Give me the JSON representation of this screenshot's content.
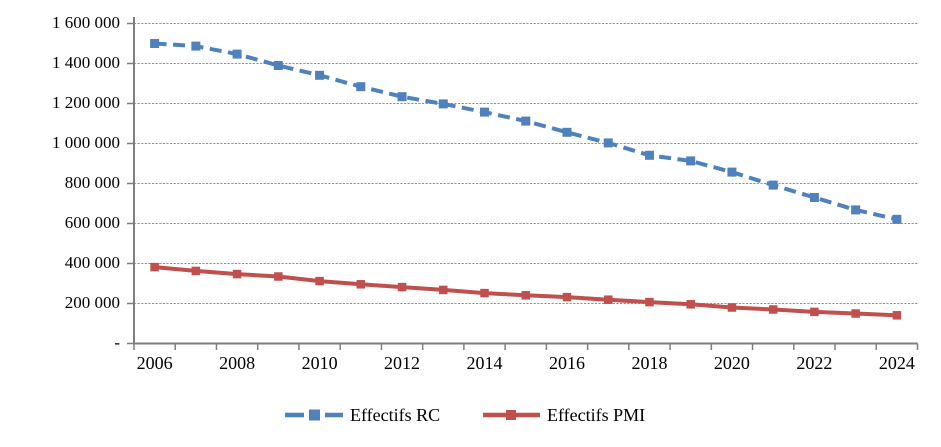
{
  "chart_data": {
    "type": "line",
    "title": "",
    "xlabel": "",
    "ylabel": "",
    "x": [
      2006,
      2007,
      2008,
      2009,
      2010,
      2011,
      2012,
      2013,
      2014,
      2015,
      2016,
      2017,
      2018,
      2019,
      2020,
      2021,
      2022,
      2023,
      2024
    ],
    "xtick_labels": [
      "2006",
      "2008",
      "2010",
      "2012",
      "2014",
      "2016",
      "2018",
      "2020",
      "2022",
      "2024"
    ],
    "ytick_labels": [
      "-",
      "200 000",
      "400 000",
      "600 000",
      "800 000",
      "1 000 000",
      "1 200 000",
      "1 400 000",
      "1 600 000"
    ],
    "ylim": [
      0,
      1600000
    ],
    "ytick_interval": 200000,
    "grid": "horizontal",
    "legend_position": "bottom-center",
    "series": [
      {
        "name": "Effectifs RC",
        "color": "#4F81BD",
        "line_style": "dashed",
        "marker": "square",
        "values": [
          1500000,
          1487000,
          1447000,
          1390000,
          1341000,
          1284000,
          1234000,
          1198000,
          1157000,
          1112000,
          1056000,
          1003000,
          941000,
          913000,
          857000,
          792000,
          730000,
          668000,
          621000
        ]
      },
      {
        "name": "Effectifs PMI",
        "color": "#C0504D",
        "line_style": "solid",
        "marker": "square",
        "values": [
          382000,
          363000,
          347000,
          335000,
          312000,
          296000,
          282000,
          268000,
          252000,
          241000,
          232000,
          219000,
          207000,
          196000,
          180000,
          170000,
          158000,
          150000,
          141000
        ]
      }
    ]
  },
  "colors": {
    "axis": "#7F7F7F",
    "gridline": "#919191",
    "text": "#000000",
    "background": "#FFFFFF"
  }
}
